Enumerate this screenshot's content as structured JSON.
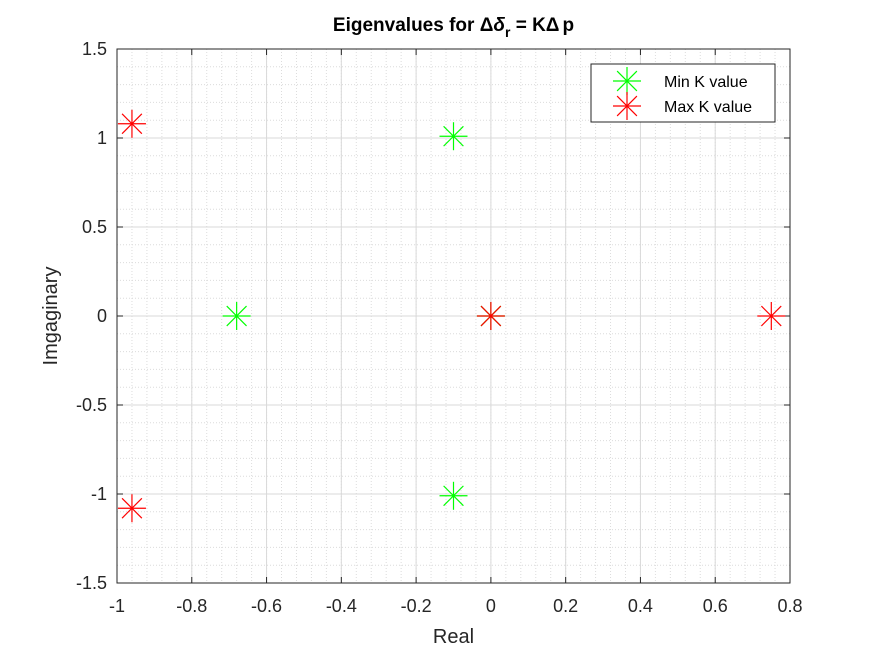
{
  "chart_data": {
    "type": "scatter",
    "title": {
      "prefix": "Eigenvalues for ",
      "delta1": "Δ",
      "delta_var": "δ",
      "subscript": "r",
      "middle": " = K",
      "delta2": "Δ",
      "suffix": "p"
    },
    "xlabel": "Real",
    "ylabel": "Imgaginary",
    "xlim": [
      -1,
      0.8
    ],
    "ylim": [
      -1.5,
      1.5
    ],
    "xticks": [
      -1,
      -0.8,
      -0.6,
      -0.4,
      -0.2,
      0,
      0.2,
      0.4,
      0.6,
      0.8
    ],
    "xtick_labels": [
      "-1",
      "-0.8",
      "-0.6",
      "-0.4",
      "-0.2",
      "0",
      "0.2",
      "0.4",
      "0.6",
      "0.8"
    ],
    "yticks": [
      -1.5,
      -1,
      -0.5,
      0,
      0.5,
      1,
      1.5
    ],
    "ytick_labels": [
      "-1.5",
      "-1",
      "-0.5",
      "0",
      "0.5",
      "1",
      "1.5"
    ],
    "grid": true,
    "minor_grid": true,
    "legend_position": "top-right",
    "marker": "asterisk",
    "series": [
      {
        "name": "Min K value",
        "color": "#00ff00",
        "points": [
          {
            "x": -0.68,
            "y": 0
          },
          {
            "x": -0.1,
            "y": 1.01
          },
          {
            "x": -0.1,
            "y": -1.01
          },
          {
            "x": 0,
            "y": 0
          }
        ]
      },
      {
        "name": "Max K value",
        "color": "#ff0000",
        "points": [
          {
            "x": -0.96,
            "y": 1.08
          },
          {
            "x": -0.96,
            "y": -1.08
          },
          {
            "x": 0,
            "y": 0
          },
          {
            "x": 0.75,
            "y": 0
          }
        ]
      }
    ]
  }
}
